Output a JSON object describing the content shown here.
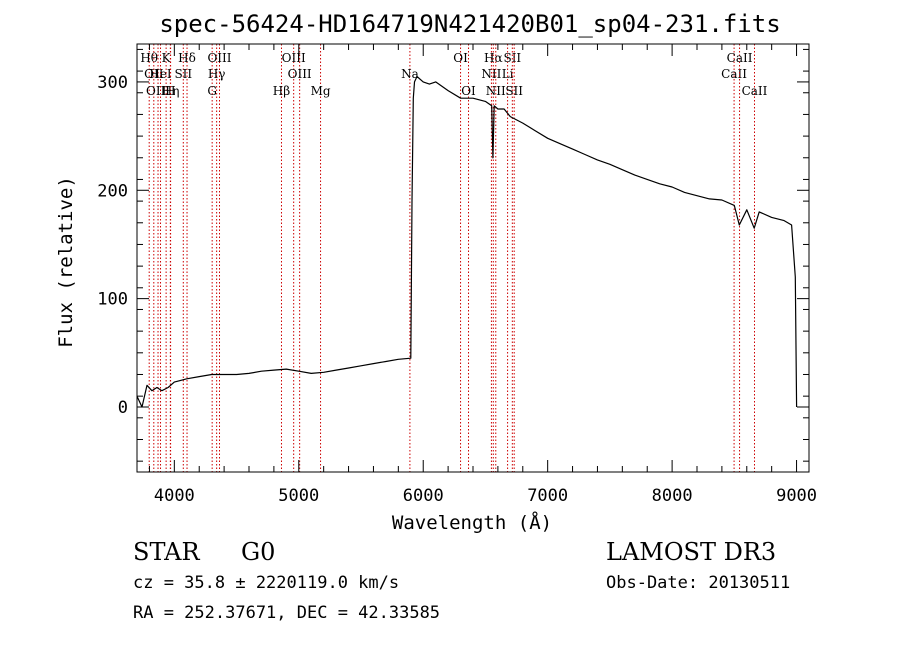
{
  "chart_data": {
    "type": "line",
    "title": "spec-56424-HD164719N421420B01_sp04-231.fits",
    "xlabel": "Wavelength (Å)",
    "ylabel": "Flux (relative)",
    "xlim": [
      3700,
      9100
    ],
    "ylim": [
      -60,
      335
    ],
    "x_ticks": [
      4000,
      5000,
      6000,
      7000,
      8000,
      9000
    ],
    "x_tick_labels": [
      "4000",
      "5000",
      "6000",
      "7000",
      "8000",
      "9000"
    ],
    "y_ticks": [
      0,
      100,
      200,
      300
    ],
    "y_tick_labels": [
      "0",
      "100",
      "200",
      "300"
    ],
    "grid": false,
    "series": [
      {
        "name": "spectrum",
        "color": "#000000",
        "x": [
          3700,
          3740,
          3780,
          3820,
          3860,
          3900,
          3950,
          4000,
          4100,
          4200,
          4300,
          4400,
          4500,
          4600,
          4700,
          4800,
          4900,
          5000,
          5100,
          5200,
          5300,
          5400,
          5500,
          5600,
          5700,
          5800,
          5900,
          5910,
          5920,
          5930,
          5950,
          6000,
          6050,
          6100,
          6200,
          6300,
          6400,
          6500,
          6550,
          6560,
          6570,
          6600,
          6650,
          6700,
          6800,
          6900,
          7000,
          7100,
          7200,
          7300,
          7400,
          7500,
          7600,
          7700,
          7800,
          7900,
          8000,
          8100,
          8200,
          8300,
          8400,
          8500,
          8540,
          8600,
          8660,
          8700,
          8800,
          8900,
          8960,
          8990,
          9000
        ],
        "y": [
          10,
          0,
          20,
          15,
          18,
          15,
          18,
          23,
          26,
          28,
          30,
          30,
          30,
          31,
          33,
          34,
          35,
          33,
          31,
          32,
          34,
          36,
          38,
          40,
          42,
          44,
          45,
          190,
          285,
          300,
          305,
          300,
          298,
          300,
          292,
          285,
          285,
          282,
          278,
          230,
          278,
          275,
          275,
          268,
          262,
          255,
          248,
          243,
          238,
          233,
          228,
          224,
          219,
          214,
          210,
          206,
          203,
          198,
          195,
          192,
          191,
          186,
          168,
          182,
          165,
          180,
          175,
          172,
          168,
          120,
          0
        ]
      }
    ],
    "line_markers": [
      {
        "x": 3798,
        "label": "Hθ",
        "row": 1
      },
      {
        "x": 3835,
        "label": "OII",
        "row": 2
      },
      {
        "x": 3869,
        "label": "OIII",
        "row": 3
      },
      {
        "x": 3889,
        "label": "HeI",
        "row": 2
      },
      {
        "x": 3934,
        "label": "K",
        "row": 1
      },
      {
        "x": 3970,
        "label": "Hη",
        "row": 3
      },
      {
        "x": 3968,
        "label": "H",
        "row": 3
      },
      {
        "x": 4072,
        "label": "SII",
        "row": 2
      },
      {
        "x": 4102,
        "label": "Hδ",
        "row": 1
      },
      {
        "x": 4304,
        "label": "G",
        "row": 3
      },
      {
        "x": 4340,
        "label": "Hγ",
        "row": 2
      },
      {
        "x": 4363,
        "label": "OIII",
        "row": 1
      },
      {
        "x": 4861,
        "label": "Hβ",
        "row": 3
      },
      {
        "x": 4959,
        "label": "OIII",
        "row": 1
      },
      {
        "x": 5007,
        "label": "OIII",
        "row": 2
      },
      {
        "x": 5175,
        "label": "Mg",
        "row": 3
      },
      {
        "x": 5893,
        "label": "Na",
        "row": 2
      },
      {
        "x": 6300,
        "label": "OI",
        "row": 1
      },
      {
        "x": 6364,
        "label": "OI",
        "row": 3
      },
      {
        "x": 6548,
        "label": "NII",
        "row": 2
      },
      {
        "x": 6563,
        "label": "Hα",
        "row": 1
      },
      {
        "x": 6583,
        "label": "NII",
        "row": 3
      },
      {
        "x": 6678,
        "label": "Li",
        "row": 2
      },
      {
        "x": 6716,
        "label": "SII",
        "row": 1
      },
      {
        "x": 6731,
        "label": "SII",
        "row": 3
      },
      {
        "x": 8498,
        "label": "CaII",
        "row": 2
      },
      {
        "x": 8542,
        "label": "CaII",
        "row": 1
      },
      {
        "x": 8662,
        "label": "CaII",
        "row": 3
      }
    ],
    "marker_color": "#cc0000"
  },
  "info": {
    "class_label": "STAR",
    "subclass_label": "G0",
    "survey_label": "LAMOST DR3",
    "cz_text": "cz = 35.8 ± 2220119.0 km/s",
    "obs_date_text": "Obs-Date: 20130511",
    "coords_text": "RA = 252.37671, DEC =  42.33585"
  }
}
